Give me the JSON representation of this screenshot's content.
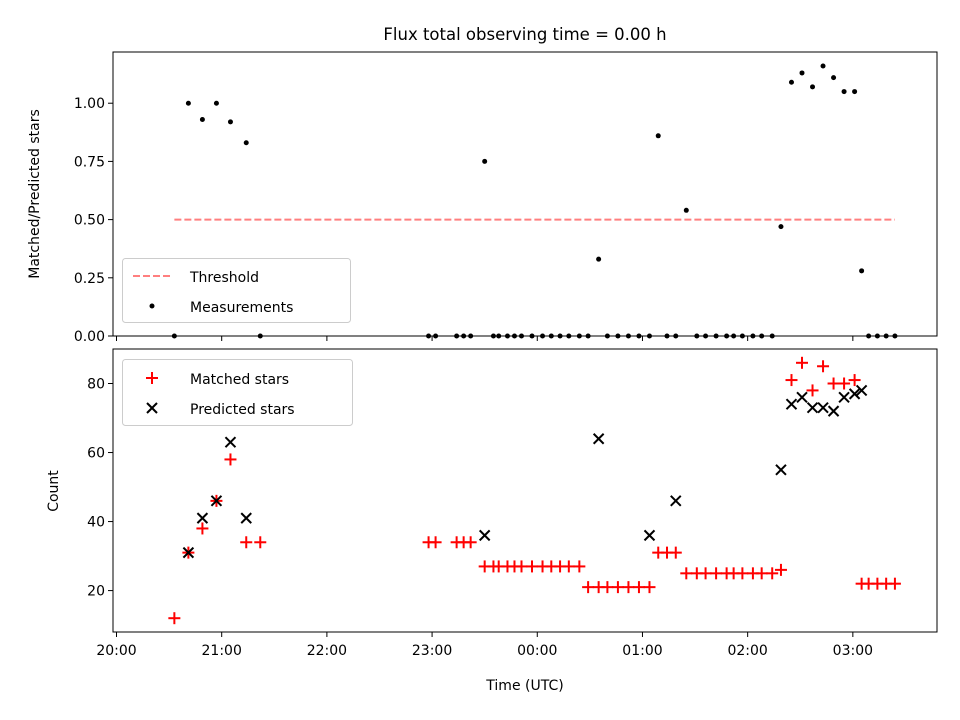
{
  "chart_data": [
    {
      "type": "scatter",
      "title": "Flux total observing time = 0.00 h",
      "xlabel": "",
      "ylabel": "Matched/Predicted stars",
      "ylim": [
        0,
        1.22
      ],
      "yticks": [
        "0.00",
        "0.25",
        "0.50",
        "0.75",
        "1.00"
      ],
      "ytick_values": [
        0,
        0.25,
        0.5,
        0.75,
        1.0
      ],
      "xtick_labels": "none (shared x-axis with lower panel)",
      "legend_placement": "lower-left",
      "threshold": {
        "name": "Threshold",
        "value": 0.5,
        "x_start": "20:33",
        "x_end": "03:24",
        "color": "#ff7f7f",
        "style": "dashed"
      },
      "series": [
        {
          "name": "Measurements",
          "color": "#000000",
          "marker": "dot",
          "x": [
            "20:33",
            "20:41",
            "20:49",
            "20:57",
            "21:05",
            "21:14",
            "21:22",
            "22:58",
            "23:02",
            "23:14",
            "23:18",
            "23:22",
            "23:30",
            "23:35",
            "23:38",
            "23:43",
            "23:47",
            "23:51",
            "23:57",
            "00:03",
            "00:08",
            "00:13",
            "00:18",
            "00:24",
            "00:29",
            "00:35",
            "00:40",
            "00:46",
            "00:52",
            "00:58",
            "01:04",
            "01:09",
            "01:14",
            "01:19",
            "01:25",
            "01:31",
            "01:36",
            "01:42",
            "01:48",
            "01:52",
            "01:57",
            "02:03",
            "02:08",
            "02:14",
            "02:19",
            "02:25",
            "02:31",
            "02:37",
            "02:43",
            "02:49",
            "02:55",
            "03:01",
            "03:05",
            "03:09",
            "03:14",
            "03:19",
            "03:24"
          ],
          "y": [
            0,
            1.0,
            0.93,
            1.0,
            0.92,
            0.83,
            0,
            0,
            0,
            0,
            0,
            0,
            0.75,
            0,
            0,
            0,
            0,
            0,
            0,
            0,
            0,
            0,
            0,
            0,
            0,
            0.33,
            0,
            0,
            0,
            0,
            0,
            0.86,
            0,
            0,
            0.54,
            0,
            0,
            0,
            0,
            0,
            0,
            0,
            0,
            0,
            0.47,
            1.09,
            1.13,
            1.07,
            1.16,
            1.11,
            1.05,
            1.05,
            0.28,
            0,
            0,
            0,
            0
          ]
        }
      ]
    },
    {
      "type": "scatter",
      "title": "",
      "xlabel": "Time (UTC)",
      "ylabel": "Count",
      "ylim": [
        8,
        90
      ],
      "yticks": [
        "20",
        "40",
        "60",
        "80"
      ],
      "ytick_values": [
        20,
        40,
        60,
        80
      ],
      "xlim": [
        "19:58",
        "03:48"
      ],
      "xtick_labels": [
        "20:00",
        "21:00",
        "22:00",
        "23:00",
        "00:00",
        "01:00",
        "02:00",
        "03:00"
      ],
      "legend_placement": "top-left",
      "series": [
        {
          "name": "Matched stars",
          "color": "#ff0000",
          "marker": "plus",
          "x": [
            "20:33",
            "20:41",
            "20:49",
            "20:57",
            "21:05",
            "21:14",
            "21:22",
            "22:58",
            "23:02",
            "23:14",
            "23:18",
            "23:22",
            "23:30",
            "23:35",
            "23:38",
            "23:43",
            "23:47",
            "23:51",
            "23:57",
            "00:03",
            "00:08",
            "00:13",
            "00:18",
            "00:24",
            "00:29",
            "00:35",
            "00:40",
            "00:46",
            "00:52",
            "00:58",
            "01:04",
            "01:09",
            "01:14",
            "01:19",
            "01:25",
            "01:31",
            "01:36",
            "01:42",
            "01:48",
            "01:52",
            "01:57",
            "02:03",
            "02:08",
            "02:14",
            "02:19",
            "02:25",
            "02:31",
            "02:37",
            "02:43",
            "02:49",
            "02:55",
            "03:01",
            "03:05",
            "03:09",
            "03:14",
            "03:19",
            "03:24"
          ],
          "y": [
            12,
            31,
            38,
            46,
            58,
            34,
            34,
            34,
            34,
            34,
            34,
            34,
            27,
            27,
            27,
            27,
            27,
            27,
            27,
            27,
            27,
            27,
            27,
            27,
            21,
            21,
            21,
            21,
            21,
            21,
            21,
            31,
            31,
            31,
            25,
            25,
            25,
            25,
            25,
            25,
            25,
            25,
            25,
            25,
            26,
            81,
            86,
            78,
            85,
            80,
            80,
            81,
            22,
            22,
            22,
            22,
            22
          ]
        },
        {
          "name": "Predicted stars",
          "color": "#000000",
          "marker": "x",
          "x": [
            "20:41",
            "20:49",
            "20:57",
            "21:05",
            "21:14",
            "23:30",
            "00:35",
            "01:04",
            "01:19",
            "02:19",
            "02:25",
            "02:31",
            "02:37",
            "02:43",
            "02:49",
            "02:55",
            "03:01",
            "03:05"
          ],
          "y": [
            31,
            41,
            46,
            63,
            41,
            36,
            64,
            36,
            46,
            55,
            74,
            76,
            73,
            73,
            72,
            76,
            77,
            78
          ]
        }
      ]
    }
  ]
}
